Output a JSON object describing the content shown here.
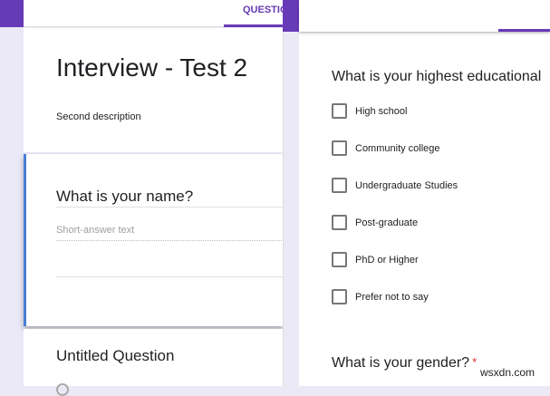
{
  "header": {
    "tab_label": "QUESTIONS"
  },
  "form": {
    "title": "Interview - Test 2",
    "description": "Second description"
  },
  "questions": [
    {
      "title": "What is your name?",
      "placeholder": "Short-answer text"
    },
    {
      "title": "Untitled Question"
    }
  ],
  "preview": {
    "education_question": "What is your highest educational",
    "options": [
      "High school",
      "Community college",
      "Undergraduate Studies",
      "Post-graduate",
      "PhD or Higher",
      "Prefer not to say"
    ],
    "gender_question": "What is your gender?",
    "required_mark": "*"
  },
  "watermark": "wsxdn.com",
  "colors": {
    "accent": "#673ab7",
    "active_border": "#4a7fd4",
    "required": "#d93025"
  }
}
